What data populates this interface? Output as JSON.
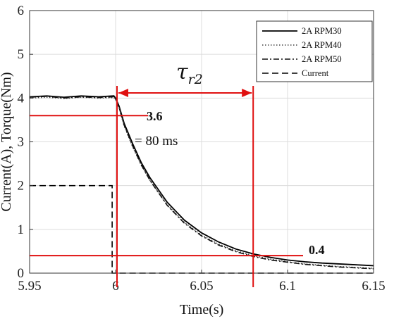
{
  "chart_data": {
    "type": "line",
    "xlabel": "Time(s)",
    "ylabel": "Current(A), Torque(Nm)",
    "xlim": [
      5.95,
      6.15
    ],
    "ylim": [
      0,
      6
    ],
    "xticks": [
      "5.95",
      "6",
      "6.05",
      "6.1",
      "6.15"
    ],
    "yticks": [
      "0",
      "1",
      "2",
      "3",
      "4",
      "5",
      "6"
    ],
    "grid": true,
    "legend_position": "top-right",
    "series": [
      {
        "name": "2A RPM30",
        "style": "solid",
        "color": "#000000",
        "x": [
          5.95,
          5.96,
          5.97,
          5.98,
          5.99,
          5.999,
          6.0,
          6.002,
          6.005,
          6.01,
          6.015,
          6.02,
          6.03,
          6.04,
          6.05,
          6.06,
          6.07,
          6.08,
          6.09,
          6.1,
          6.11,
          6.12,
          6.13,
          6.14,
          6.15
        ],
        "y": [
          4.03,
          4.05,
          4.02,
          4.05,
          4.03,
          4.05,
          4.0,
          3.82,
          3.42,
          2.95,
          2.52,
          2.18,
          1.62,
          1.21,
          0.92,
          0.71,
          0.55,
          0.44,
          0.36,
          0.3,
          0.26,
          0.23,
          0.21,
          0.19,
          0.17
        ]
      },
      {
        "name": "2A RPM40",
        "style": "dotted",
        "color": "#444444",
        "x": [
          5.95,
          5.96,
          5.97,
          5.98,
          5.99,
          5.999,
          6.0,
          6.002,
          6.005,
          6.01,
          6.015,
          6.02,
          6.03,
          6.04,
          6.05,
          6.06,
          6.07,
          6.08,
          6.09,
          6.1,
          6.11,
          6.12,
          6.13,
          6.14,
          6.15
        ],
        "y": [
          4.0,
          4.02,
          3.99,
          4.02,
          4.0,
          4.01,
          3.97,
          3.78,
          3.36,
          2.88,
          2.46,
          2.12,
          1.56,
          1.16,
          0.87,
          0.66,
          0.51,
          0.4,
          0.32,
          0.26,
          0.21,
          0.18,
          0.15,
          0.13,
          0.11
        ]
      },
      {
        "name": "2A RPM50",
        "style": "dashdot",
        "color": "#111111",
        "x": [
          5.95,
          5.96,
          5.97,
          5.98,
          5.99,
          5.999,
          6.0,
          6.002,
          6.005,
          6.01,
          6.015,
          6.02,
          6.03,
          6.04,
          6.05,
          6.06,
          6.07,
          6.08,
          6.09,
          6.1,
          6.11,
          6.12,
          6.13,
          6.14,
          6.15
        ],
        "y": [
          4.02,
          4.04,
          4.0,
          4.03,
          4.01,
          4.03,
          3.98,
          3.79,
          3.38,
          2.9,
          2.47,
          2.12,
          1.55,
          1.14,
          0.85,
          0.64,
          0.49,
          0.38,
          0.3,
          0.25,
          0.2,
          0.17,
          0.14,
          0.12,
          0.1
        ]
      },
      {
        "name": "Current",
        "style": "dashed",
        "color": "#000000",
        "x": [
          5.95,
          5.998,
          5.998,
          6.0,
          6.15
        ],
        "y": [
          2.0,
          2.0,
          0.0,
          0.0,
          0.0
        ]
      }
    ],
    "annotations": {
      "tau_label": "τr2",
      "tau_start": 6.0,
      "tau_end": 6.08,
      "tau_value_label": "= 80 ms",
      "upper_level": 3.6,
      "upper_label": "3.6",
      "lower_level": 0.4,
      "lower_label": "0.4",
      "marker_color": "#e01010"
    }
  }
}
